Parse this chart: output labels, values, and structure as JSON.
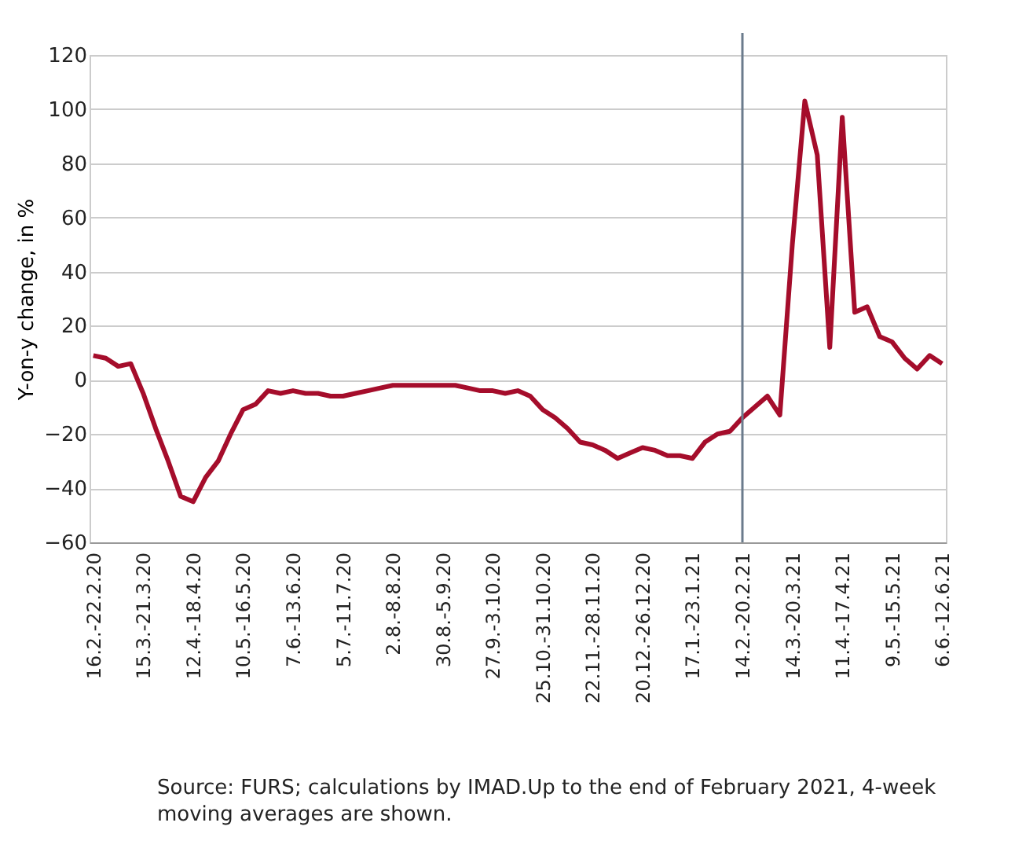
{
  "chart_data": {
    "type": "line",
    "ylabel": "Y-on-y change, in %",
    "categories": [
      "16.2.-22.2.20",
      null,
      null,
      null,
      "15.3.-21.3.20",
      null,
      null,
      null,
      "12.4.-18.4.20",
      null,
      null,
      null,
      "10.5.-16.5.20",
      null,
      null,
      null,
      "7.6.-13.6.20",
      null,
      null,
      null,
      "5.7.-11.7.20",
      null,
      null,
      null,
      "2.8.-8.8.20",
      null,
      null,
      null,
      "30.8.-5.9.20",
      null,
      null,
      null,
      "27.9.-3.10.20",
      null,
      null,
      null,
      "25.10.-31.10.20",
      null,
      null,
      null,
      "22.11.-28.11.20",
      null,
      null,
      null,
      "20.12.-26.12.20",
      null,
      null,
      null,
      "17.1.-23.1.21",
      null,
      null,
      null,
      "14.2.-20.2.21",
      null,
      null,
      null,
      "14.3.-20.3.21",
      null,
      null,
      null,
      "11.4.-17.4.21",
      null,
      null,
      null,
      "9.5.-15.5.21",
      null,
      null,
      null,
      "6.6.-12.6.21"
    ],
    "series": [
      {
        "color": "#a50d2b",
        "values": [
          9,
          8,
          5,
          6,
          -5,
          -18,
          -30,
          -43,
          -45,
          -36,
          -30,
          -20,
          -11,
          -9,
          -4,
          -5,
          -4,
          -5,
          -5,
          -6,
          -6,
          -5,
          -4,
          -3,
          -2,
          -2,
          -2,
          -2,
          -2,
          -2,
          -3,
          -4,
          -4,
          -5,
          -4,
          -6,
          -11,
          -14,
          -18,
          -23,
          -24,
          -26,
          -29,
          -27,
          -25,
          -26,
          -28,
          -28,
          -29,
          -23,
          -20,
          -19,
          -14,
          -10,
          -6,
          -13,
          50,
          103,
          83,
          12,
          97,
          25,
          27,
          16,
          14,
          8,
          4,
          9,
          6
        ]
      }
    ],
    "ylim": [
      -60,
      120
    ],
    "yticks": [
      -60,
      -40,
      -20,
      0,
      20,
      40,
      60,
      80,
      100,
      120
    ],
    "grid": "y",
    "ref_lines": [
      {
        "axis": "x",
        "value": "14.2.-20.2.21",
        "color": "#6b7b8c"
      }
    ],
    "annotations": [
      "Source: FURS; calculations by IMAD.Up to the end of February 2021, 4-week moving averages are shown."
    ]
  }
}
